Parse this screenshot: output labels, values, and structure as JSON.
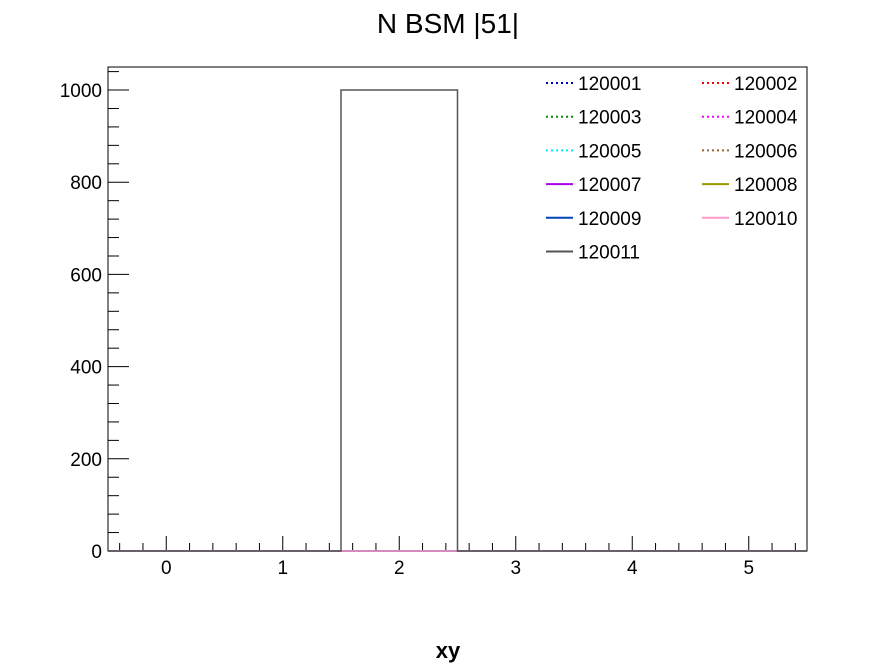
{
  "chart_data": {
    "type": "bar",
    "title": "N BSM |51|",
    "xlabel": "xy",
    "ylabel": "",
    "xlim": [
      -0.5,
      5.5
    ],
    "ylim": [
      0,
      1050
    ],
    "x_ticks": [
      0,
      1,
      2,
      3,
      4,
      5
    ],
    "y_ticks": [
      0,
      200,
      400,
      600,
      800,
      1000
    ],
    "bin_edges": [
      -0.5,
      0.5,
      1.5,
      2.5,
      3.5,
      4.5,
      5.5
    ],
    "grid": false,
    "legend_position": "top-right",
    "legend_columns": 2,
    "series": [
      {
        "name": "120001",
        "color": "#0000cc",
        "dash": "dotted",
        "values": [
          0,
          0,
          0,
          0,
          0,
          0
        ]
      },
      {
        "name": "120002",
        "color": "#ff0000",
        "dash": "dotted",
        "values": [
          0,
          0,
          0,
          0,
          0,
          0
        ]
      },
      {
        "name": "120003",
        "color": "#008800",
        "dash": "dotted",
        "values": [
          0,
          0,
          0,
          0,
          0,
          0
        ]
      },
      {
        "name": "120004",
        "color": "#ff00ff",
        "dash": "dotted",
        "values": [
          0,
          0,
          0,
          0,
          0,
          0
        ]
      },
      {
        "name": "120005",
        "color": "#00eeee",
        "dash": "dotted",
        "values": [
          0,
          0,
          0,
          0,
          0,
          0
        ]
      },
      {
        "name": "120006",
        "color": "#996633",
        "dash": "dotted",
        "values": [
          0,
          0,
          0,
          0,
          0,
          0
        ]
      },
      {
        "name": "120007",
        "color": "#aa00ee",
        "dash": "solid",
        "values": [
          0,
          0,
          0,
          0,
          0,
          0
        ]
      },
      {
        "name": "120008",
        "color": "#999900",
        "dash": "solid",
        "values": [
          0,
          0,
          0,
          0,
          0,
          0
        ]
      },
      {
        "name": "120009",
        "color": "#0044bb",
        "dash": "solid",
        "values": [
          0,
          0,
          0,
          0,
          0,
          0
        ]
      },
      {
        "name": "120010",
        "color": "#ff99cc",
        "dash": "solid",
        "values": [
          0,
          0,
          0,
          0,
          0,
          0
        ]
      },
      {
        "name": "120011",
        "color": "#555555",
        "dash": "solid",
        "values": [
          0,
          0,
          1000,
          0,
          0,
          0
        ]
      }
    ]
  }
}
